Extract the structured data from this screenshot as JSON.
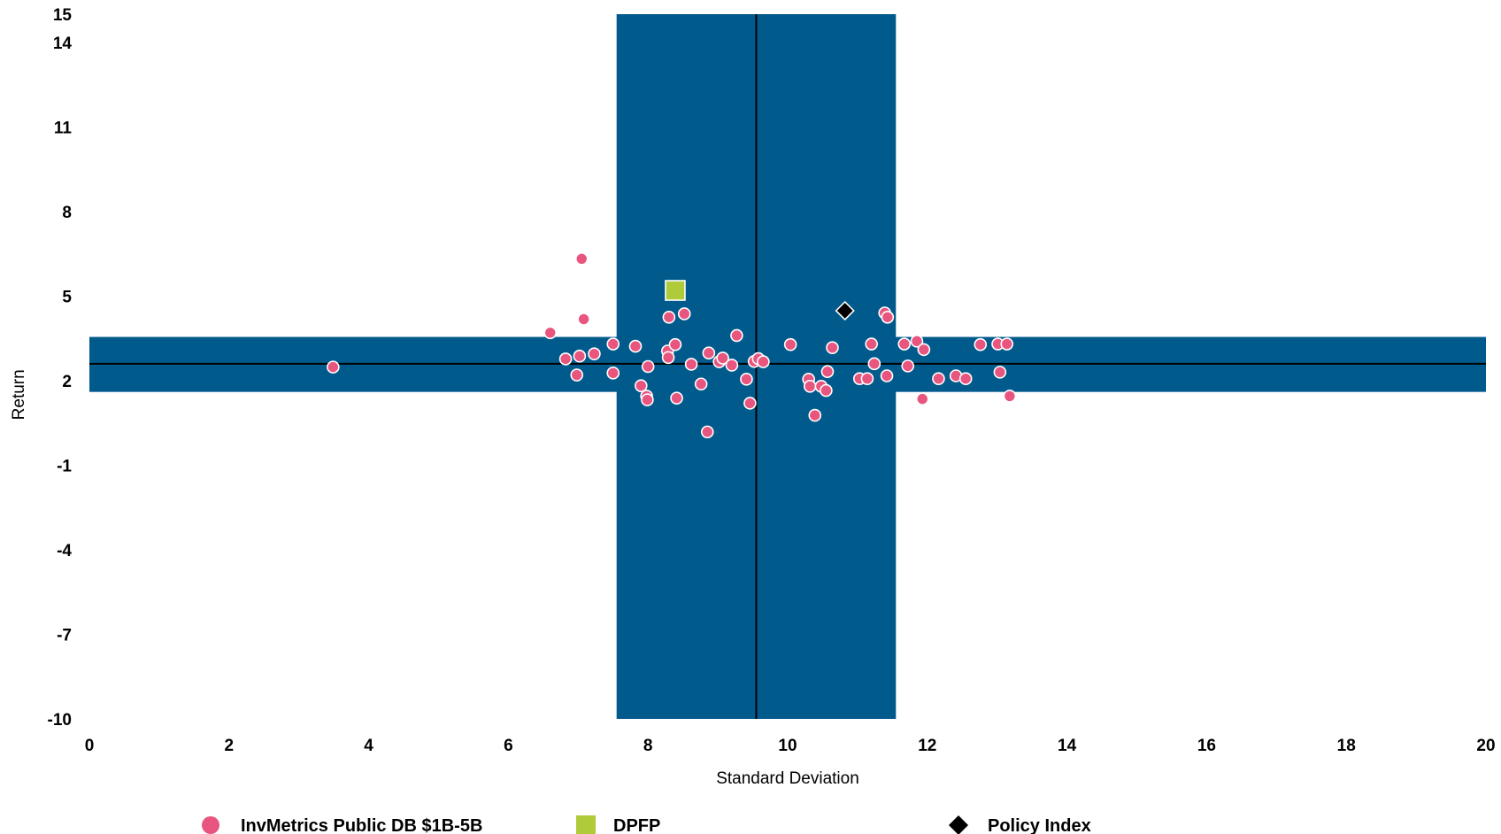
{
  "chart_data": {
    "type": "scatter",
    "xlabel": "Standard Deviation",
    "ylabel": "Return",
    "xlim": [
      0,
      20
    ],
    "ylim": [
      -10,
      15
    ],
    "x_ticks": [
      0,
      2,
      4,
      6,
      8,
      10,
      12,
      14,
      16,
      18,
      20
    ],
    "y_ticks": [
      -10,
      -7,
      -4,
      -1,
      2,
      5,
      8,
      11,
      14,
      15
    ],
    "y_tick_bold": [
      true,
      true,
      true,
      true,
      false,
      true,
      true,
      true,
      true,
      true
    ],
    "median_x": 9.55,
    "median_y": 2.6,
    "vertical_band_x": [
      7.55,
      11.55
    ],
    "horizontal_band_y": [
      1.6,
      3.55
    ],
    "band_color": "#005A8C",
    "series": [
      {
        "name": "InvMetrics Public DB $1B-5B",
        "marker": "circle",
        "color": "#E8557F",
        "points": [
          [
            3.49,
            2.48
          ],
          [
            6.6,
            3.7
          ],
          [
            6.82,
            2.77
          ],
          [
            6.98,
            2.2
          ],
          [
            7.02,
            2.87
          ],
          [
            7.05,
            6.32
          ],
          [
            7.08,
            4.18
          ],
          [
            7.23,
            2.95
          ],
          [
            7.5,
            3.3
          ],
          [
            7.5,
            2.27
          ],
          [
            7.82,
            3.22
          ],
          [
            7.9,
            1.82
          ],
          [
            7.98,
            1.45
          ],
          [
            7.99,
            1.32
          ],
          [
            8.0,
            2.5
          ],
          [
            8.28,
            3.05
          ],
          [
            8.29,
            2.82
          ],
          [
            8.3,
            4.25
          ],
          [
            8.39,
            3.28
          ],
          [
            8.41,
            1.38
          ],
          [
            8.52,
            4.37
          ],
          [
            8.62,
            2.58
          ],
          [
            8.76,
            1.88
          ],
          [
            8.85,
            0.18
          ],
          [
            8.87,
            2.98
          ],
          [
            9.02,
            2.67
          ],
          [
            9.07,
            2.8
          ],
          [
            9.2,
            2.55
          ],
          [
            9.27,
            3.6
          ],
          [
            9.41,
            2.05
          ],
          [
            9.46,
            1.2
          ],
          [
            9.52,
            2.68
          ],
          [
            9.58,
            2.78
          ],
          [
            9.65,
            2.67
          ],
          [
            10.04,
            3.28
          ],
          [
            10.3,
            2.05
          ],
          [
            10.32,
            1.8
          ],
          [
            10.39,
            0.77
          ],
          [
            10.48,
            1.8
          ],
          [
            10.55,
            1.65
          ],
          [
            10.57,
            2.32
          ],
          [
            10.64,
            3.17
          ],
          [
            11.03,
            2.07
          ],
          [
            11.14,
            2.07
          ],
          [
            11.2,
            3.3
          ],
          [
            11.24,
            2.6
          ],
          [
            11.39,
            4.4
          ],
          [
            11.42,
            2.17
          ],
          [
            11.43,
            4.25
          ],
          [
            11.67,
            3.3
          ],
          [
            11.72,
            2.52
          ],
          [
            11.85,
            3.4
          ],
          [
            11.93,
            1.35
          ],
          [
            11.95,
            3.1
          ],
          [
            12.16,
            2.07
          ],
          [
            12.41,
            2.17
          ],
          [
            12.55,
            2.07
          ],
          [
            12.76,
            3.28
          ],
          [
            13.01,
            3.3
          ],
          [
            13.04,
            2.3
          ],
          [
            13.14,
            3.3
          ],
          [
            13.18,
            1.45
          ]
        ]
      },
      {
        "name": "DPFP",
        "marker": "square",
        "color": "#B0CB3A",
        "points": [
          [
            8.39,
            5.2
          ]
        ]
      },
      {
        "name": "Policy Index",
        "marker": "diamond",
        "color": "#000000",
        "points": [
          [
            10.82,
            4.48
          ]
        ]
      }
    ]
  }
}
